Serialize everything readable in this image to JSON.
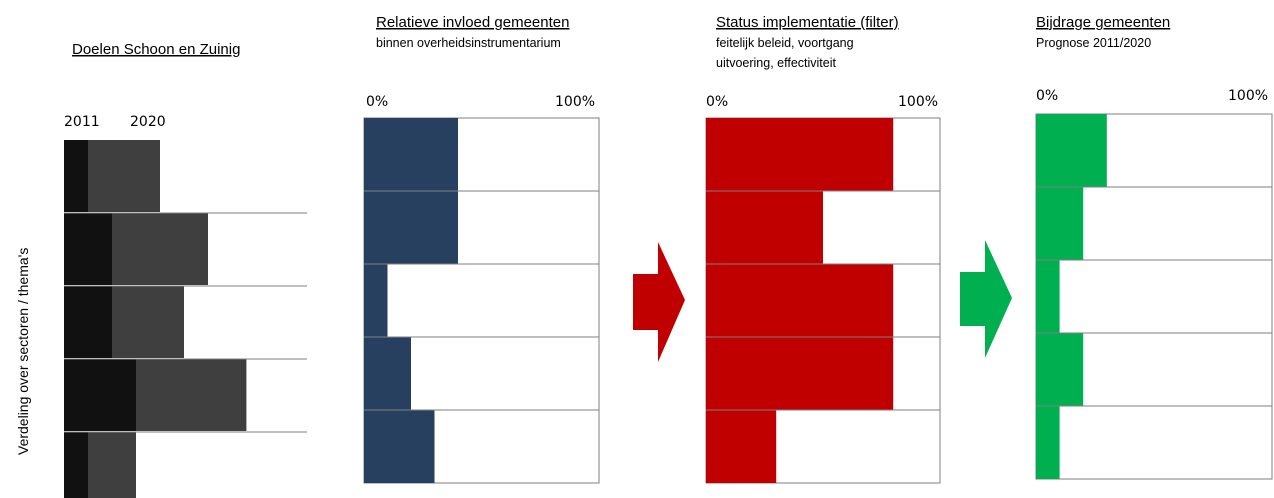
{
  "colors": {
    "goal_2011": "#111111",
    "goal_2020": "#3f3f3f",
    "influence": "#27405f",
    "implementation": "#c00000",
    "contribution": "#00b050",
    "grid": "#7f7f7f"
  },
  "y_axis_label": "Verdeling over sectoren / thema's",
  "chart_data": [
    {
      "type": "bar",
      "title": "Doelen Schoon en Zuinig",
      "subtitle": "",
      "series": [
        {
          "name": "2011",
          "values": [
            1.0,
            2.0,
            2.0,
            3.0,
            1.0
          ]
        },
        {
          "name": "2020",
          "values": [
            3.0,
            4.0,
            3.0,
            4.6,
            2.0
          ]
        }
      ],
      "legend": [
        "2011",
        "2020"
      ],
      "orientation": "horizontal",
      "stacked": true
    },
    {
      "type": "bar",
      "title": "Relatieve invloed gemeenten",
      "subtitle": [
        "binnen overheidsinstrumentarium"
      ],
      "xlabel_left": "0%",
      "xlabel_right": "100%",
      "values": [
        40,
        40,
        10,
        20,
        30
      ],
      "orientation": "horizontal",
      "xlim": [
        0,
        100
      ],
      "color": "#27405f"
    },
    {
      "type": "bar",
      "title": "Status implementatie (filter)",
      "subtitle": [
        "feitelijk beleid, voortgang",
        "uitvoering, effectiviteit"
      ],
      "xlabel_left": "0%",
      "xlabel_right": "100%",
      "values": [
        80,
        50,
        80,
        80,
        30
      ],
      "orientation": "horizontal",
      "xlim": [
        0,
        100
      ],
      "color": "#c00000"
    },
    {
      "type": "bar",
      "title": "Bijdrage gemeenten",
      "subtitle": [
        "Prognose 2011/2020"
      ],
      "xlabel_left": "0%",
      "xlabel_right": "100%",
      "values": [
        30,
        20,
        10,
        20,
        10
      ],
      "orientation": "horizontal",
      "xlim": [
        0,
        100
      ],
      "color": "#00b050"
    }
  ]
}
